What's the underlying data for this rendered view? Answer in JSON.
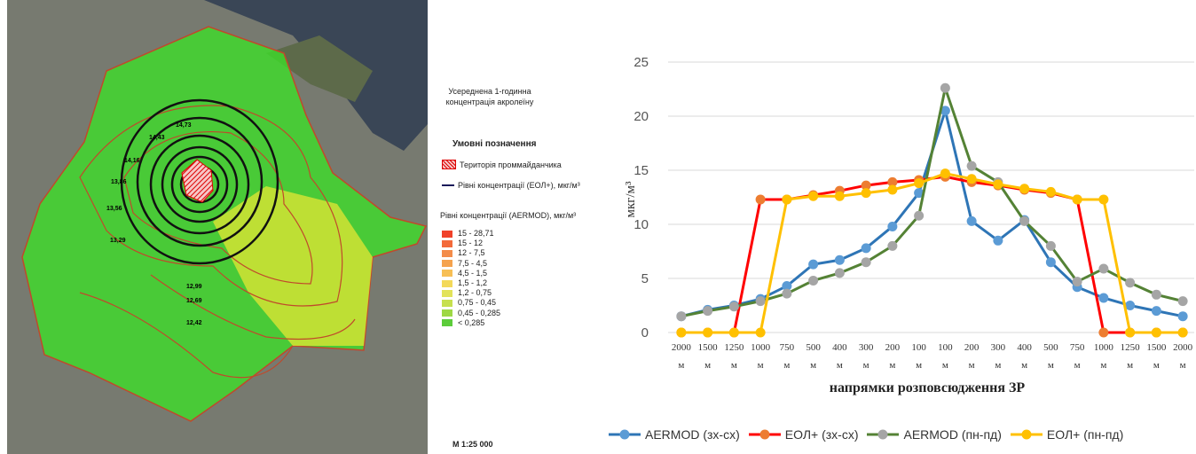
{
  "map": {
    "title": "Усереднена 1-годинна концентрація акролеїну",
    "legend_heading": "Умовні позначення",
    "site_label": "Територія проммайданчика",
    "eol_label": "Рівні концентрації (ЕОЛ+), мкг/м³",
    "aermod_label": "Рівні концентрації (AERMOD), мкг/м³",
    "aermod_levels": [
      {
        "label": "15 - 28,71",
        "color": "#f0422a"
      },
      {
        "label": "15 - 12",
        "color": "#f36a3a"
      },
      {
        "label": "12 - 7,5",
        "color": "#f38c4a"
      },
      {
        "label": "7,5 - 4,5",
        "color": "#f5a34e"
      },
      {
        "label": "4,5 - 1,5",
        "color": "#f7bf55"
      },
      {
        "label": "1,5 - 1,2",
        "color": "#f3d95a"
      },
      {
        "label": "1,2 - 0,75",
        "color": "#e2e35a"
      },
      {
        "label": "0,75 - 0,45",
        "color": "#c6e04e"
      },
      {
        "label": "0,45 - 0,285",
        "color": "#9ed845"
      },
      {
        "label": "< 0,285",
        "color": "#5ccc3a"
      }
    ],
    "contour_labels": [
      "14,73",
      "14,43",
      "14,16",
      "13,86",
      "13,56",
      "13,29",
      "12,99",
      "12,69",
      "12,42"
    ],
    "scale": "М 1:25 000"
  },
  "chart_data": {
    "type": "line",
    "x_label": "напрямки розповсюдження ЗР",
    "y_label": "мкг/м³",
    "categories": [
      "2000 м",
      "1500 м",
      "1250 м",
      "1000 м",
      "750 м",
      "500 м",
      "400 м",
      "300 м",
      "200 м",
      "100 м",
      "100 м",
      "200 м",
      "300 м",
      "400 м",
      "500 м",
      "750 м",
      "1000 м",
      "1250 м",
      "1500 м",
      "2000 м"
    ],
    "ylim": [
      0,
      25
    ],
    "yticks": [
      0,
      5,
      10,
      15,
      20,
      25
    ],
    "grid": true,
    "series": [
      {
        "name": "AERMOD (зх-сх)",
        "color": "#2e75b6",
        "marker_color": "#5b9bd5",
        "values": [
          1.5,
          2.1,
          2.5,
          3.1,
          4.3,
          6.3,
          6.7,
          7.8,
          9.8,
          12.9,
          20.5,
          10.3,
          8.5,
          10.4,
          6.5,
          4.2,
          3.2,
          2.5,
          2.0,
          1.5
        ]
      },
      {
        "name": "ЕОЛ+ (зх-сх)",
        "color": "#ff0000",
        "marker_color": "#ed7d31",
        "values": [
          0,
          0,
          0,
          12.3,
          12.3,
          12.7,
          13.1,
          13.6,
          13.9,
          14.1,
          14.4,
          13.9,
          13.6,
          13.2,
          12.9,
          12.3,
          0,
          0,
          0,
          0
        ]
      },
      {
        "name": "AERMOD (пн-пд)",
        "color": "#548235",
        "marker_color": "#a5a5a5",
        "values": [
          1.5,
          2.0,
          2.4,
          2.9,
          3.6,
          4.8,
          5.5,
          6.5,
          8.0,
          10.8,
          22.6,
          15.4,
          13.9,
          10.3,
          8.0,
          4.7,
          5.9,
          4.6,
          3.5,
          2.9
        ]
      },
      {
        "name": "ЕОЛ+ (пн-пд)",
        "color": "#ffc000",
        "marker_color": "#ffc000",
        "values": [
          0,
          0,
          0,
          0,
          12.3,
          12.6,
          12.6,
          12.9,
          13.2,
          13.8,
          14.7,
          14.2,
          13.7,
          13.3,
          13.0,
          12.3,
          12.3,
          0,
          0,
          0
        ]
      }
    ]
  }
}
